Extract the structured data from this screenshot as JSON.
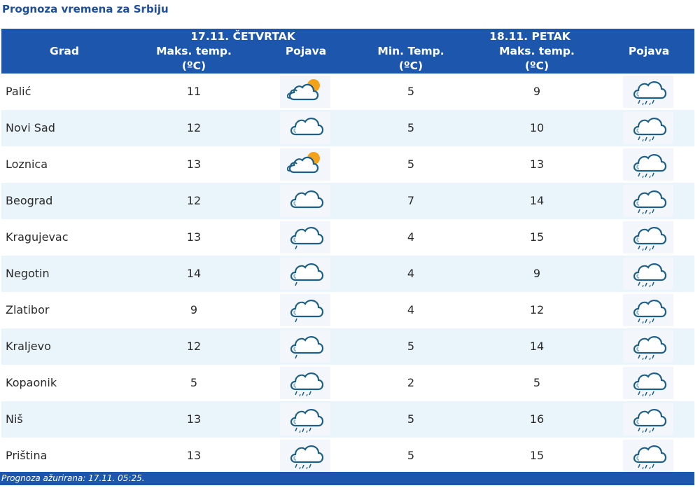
{
  "title": "Prognoza vremena za Srbiju",
  "header": {
    "day1": "17.11. ČETVRTAK",
    "day2": "18.11. PETAK",
    "grad": "Grad",
    "maks_temp": "Maks. temp.",
    "min_temp": "Min. Temp.",
    "unit": "(ºC)",
    "pojava": "Pojava"
  },
  "rows": [
    {
      "city": "Palić",
      "max1": "11",
      "icon1": "partly-sunny-cloud-icon",
      "min": "5",
      "max2": "9",
      "icon2": "rain-cloud-icon"
    },
    {
      "city": "Novi Sad",
      "max1": "12",
      "icon1": "cloud-icon",
      "min": "5",
      "max2": "10",
      "icon2": "rain-cloud-icon"
    },
    {
      "city": "Loznica",
      "max1": "13",
      "icon1": "partly-sunny-cloud-icon",
      "min": "5",
      "max2": "13",
      "icon2": "rain-cloud-icon"
    },
    {
      "city": "Beograd",
      "max1": "12",
      "icon1": "cloud-icon",
      "min": "7",
      "max2": "14",
      "icon2": "rain-cloud-icon"
    },
    {
      "city": "Kragujevac",
      "max1": "13",
      "icon1": "light-rain-cloud-icon",
      "min": "4",
      "max2": "15",
      "icon2": "rain-cloud-icon"
    },
    {
      "city": "Negotin",
      "max1": "14",
      "icon1": "light-rain-cloud-icon",
      "min": "4",
      "max2": "9",
      "icon2": "rain-cloud-icon"
    },
    {
      "city": "Zlatibor",
      "max1": "9",
      "icon1": "light-rain-cloud-icon",
      "min": "4",
      "max2": "12",
      "icon2": "rain-cloud-icon"
    },
    {
      "city": "Kraljevo",
      "max1": "12",
      "icon1": "light-rain-cloud-icon",
      "min": "5",
      "max2": "14",
      "icon2": "rain-cloud-icon"
    },
    {
      "city": "Kopaonik",
      "max1": "5",
      "icon1": "rain-cloud-icon",
      "min": "2",
      "max2": "5",
      "icon2": "rain-cloud-icon"
    },
    {
      "city": "Niš",
      "max1": "13",
      "icon1": "rain-cloud-icon",
      "min": "5",
      "max2": "16",
      "icon2": "rain-cloud-icon"
    },
    {
      "city": "Priština",
      "max1": "13",
      "icon1": "rain-cloud-icon",
      "min": "5",
      "max2": "15",
      "icon2": "rain-cloud-icon"
    }
  ],
  "footer": "Prognoza ažurirana:  17.11. 05:25.",
  "colors": {
    "header_bg": "#1c56ad",
    "title": "#1f4e96",
    "row_alt": "#eaf4fb"
  }
}
